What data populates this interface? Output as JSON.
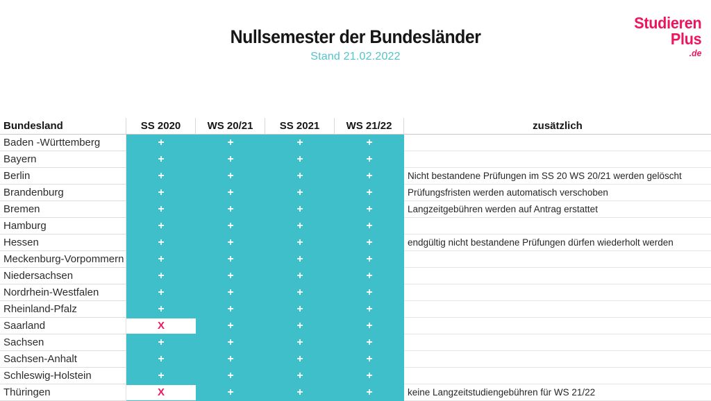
{
  "page": {
    "title": "Nullsemester der Bundesländer",
    "subtitle": "Stand 21.02.2022"
  },
  "logo": {
    "line1": "Studieren",
    "line2": "Plus",
    "line3": ".de"
  },
  "colors": {
    "teal": "#3fbfca",
    "subtitle_teal": "#54c3ca",
    "brand_pink": "#ec155e",
    "cross_pink": "#ea1a5c"
  },
  "table": {
    "headers": {
      "bundesland": "Bundesland",
      "semesters": [
        "SS 2020",
        "WS 20/21",
        "SS 2021",
        "WS 21/22"
      ],
      "extra": "zusätzlich"
    },
    "symbols": {
      "yes": "+",
      "no": "x"
    },
    "rows": [
      {
        "name": "Baden -Württemberg",
        "cells": [
          "+",
          "+",
          "+",
          "+"
        ],
        "note": ""
      },
      {
        "name": "Bayern",
        "cells": [
          "+",
          "+",
          "+",
          "+"
        ],
        "note": ""
      },
      {
        "name": "Berlin",
        "cells": [
          "+",
          "+",
          "+",
          "+"
        ],
        "note": "Nicht bestandene Prüfungen im SS 20 WS 20/21 werden gelöscht"
      },
      {
        "name": "Brandenburg",
        "cells": [
          "+",
          "+",
          "+",
          "+"
        ],
        "note": "Prüfungsfristen werden automatisch verschoben"
      },
      {
        "name": "Bremen",
        "cells": [
          "+",
          "+",
          "+",
          "+"
        ],
        "note": "Langzeitgebühren werden auf Antrag erstattet"
      },
      {
        "name": "Hamburg",
        "cells": [
          "+",
          "+",
          "+",
          "+"
        ],
        "note": ""
      },
      {
        "name": "Hessen",
        "cells": [
          "+",
          "+",
          "+",
          "+"
        ],
        "note": "endgültig nicht bestandene Prüfungen dürfen wiederholt werden"
      },
      {
        "name": "Meckenburg-Vorpommern",
        "cells": [
          "+",
          "+",
          "+",
          "+"
        ],
        "note": ""
      },
      {
        "name": "Niedersachsen",
        "cells": [
          "+",
          "+",
          "+",
          "+"
        ],
        "note": ""
      },
      {
        "name": "Nordrhein-Westfalen",
        "cells": [
          "+",
          "+",
          "+",
          "+"
        ],
        "note": ""
      },
      {
        "name": "Rheinland-Pfalz",
        "cells": [
          "+",
          "+",
          "+",
          "+"
        ],
        "note": ""
      },
      {
        "name": "Saarland",
        "cells": [
          "x",
          "+",
          "+",
          "+"
        ],
        "note": ""
      },
      {
        "name": "Sachsen",
        "cells": [
          "+",
          "+",
          "+",
          "+"
        ],
        "note": ""
      },
      {
        "name": "Sachsen-Anhalt",
        "cells": [
          "+",
          "+",
          "+",
          "+"
        ],
        "note": ""
      },
      {
        "name": "Schleswig-Holstein",
        "cells": [
          "+",
          "+",
          "+",
          "+"
        ],
        "note": ""
      },
      {
        "name": "Thüringen",
        "cells": [
          "x",
          "+",
          "+",
          "+"
        ],
        "note": "keine Langzeitstudiengebühren  für WS 21/22"
      }
    ]
  }
}
